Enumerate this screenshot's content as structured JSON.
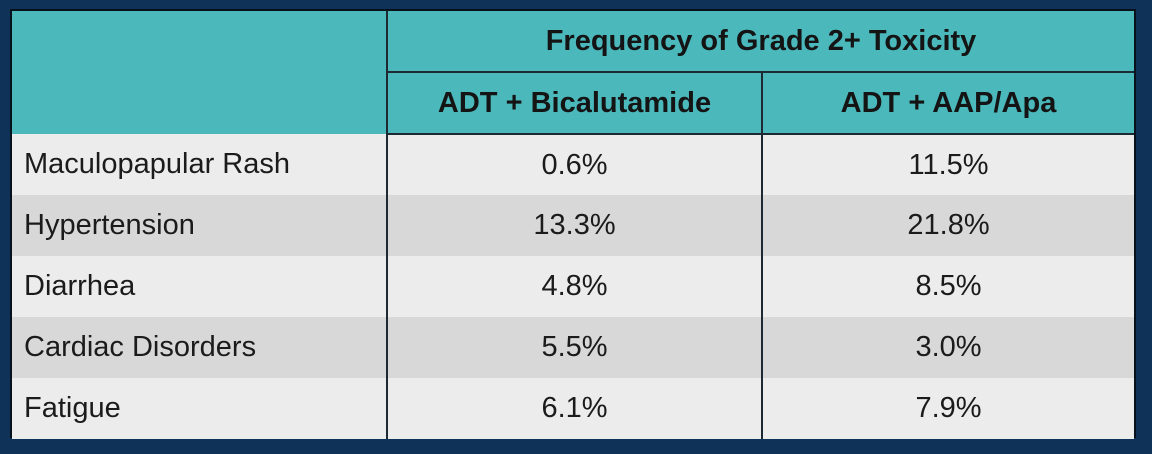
{
  "table": {
    "group_header": "Frequency of Grade 2+ Toxicity",
    "columns": [
      "ADT + Bicalutamide",
      "ADT +  AAP/Apa"
    ],
    "rows": [
      {
        "label": "Maculopapular Rash",
        "values": [
          "0.6%",
          "11.5%"
        ]
      },
      {
        "label": "Hypertension",
        "values": [
          "13.3%",
          "21.8%"
        ]
      },
      {
        "label": "Diarrhea",
        "values": [
          "4.8%",
          "8.5%"
        ]
      },
      {
        "label": "Cardiac Disorders",
        "values": [
          "5.5%",
          "3.0%"
        ]
      },
      {
        "label": "Fatigue",
        "values": [
          "6.1%",
          "7.9%"
        ]
      }
    ]
  },
  "colors": {
    "header_bg": "#4bb8bc",
    "row_light": "#ececec",
    "row_dark": "#d8d8d8",
    "page_bg": "#0f3358"
  }
}
